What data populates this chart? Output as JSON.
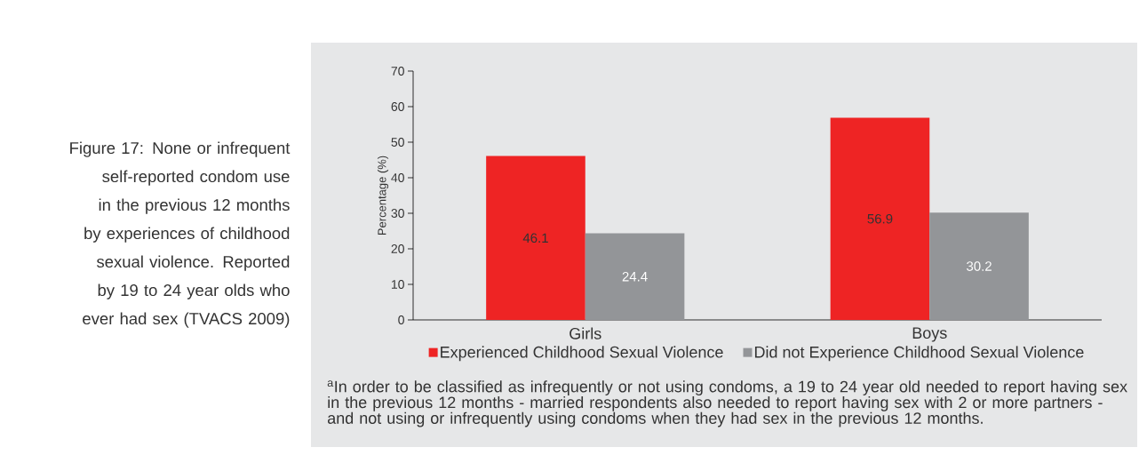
{
  "chart_data": {
    "type": "bar",
    "title": "Figure 17: None or infrequent self-reported condom use in the previous 12 months by experiences of childhood sexual violence. Reported by 19 to 24 year olds who ever had sex  (TVACS 2009)",
    "ylabel": "Percentage (%)",
    "categories": [
      "Girls",
      "Boys"
    ],
    "series": [
      {
        "name": "Experienced Childhood Sexual Violence",
        "color": "#ee2424",
        "values": [
          46.1,
          56.9
        ]
      },
      {
        "name": "Did not Experience Childhood Sexual Violence",
        "color": "#939598",
        "values": [
          24.4,
          30.2
        ]
      }
    ],
    "ylim": [
      0,
      70
    ],
    "yticks": [
      0,
      10,
      20,
      30,
      40,
      50,
      60,
      70
    ],
    "data_labels": true,
    "legend": "bottom",
    "annotations": [
      "$^{a}$In order to be classified as infrequently or not using condoms, a 19 to 24 year old needed to report having sex in the previous 12 months - married respondents also needed to report having sex with 2 or more partners - and not using or infrequently using condoms when they had sex in the previous 12 months."
    ]
  }
}
